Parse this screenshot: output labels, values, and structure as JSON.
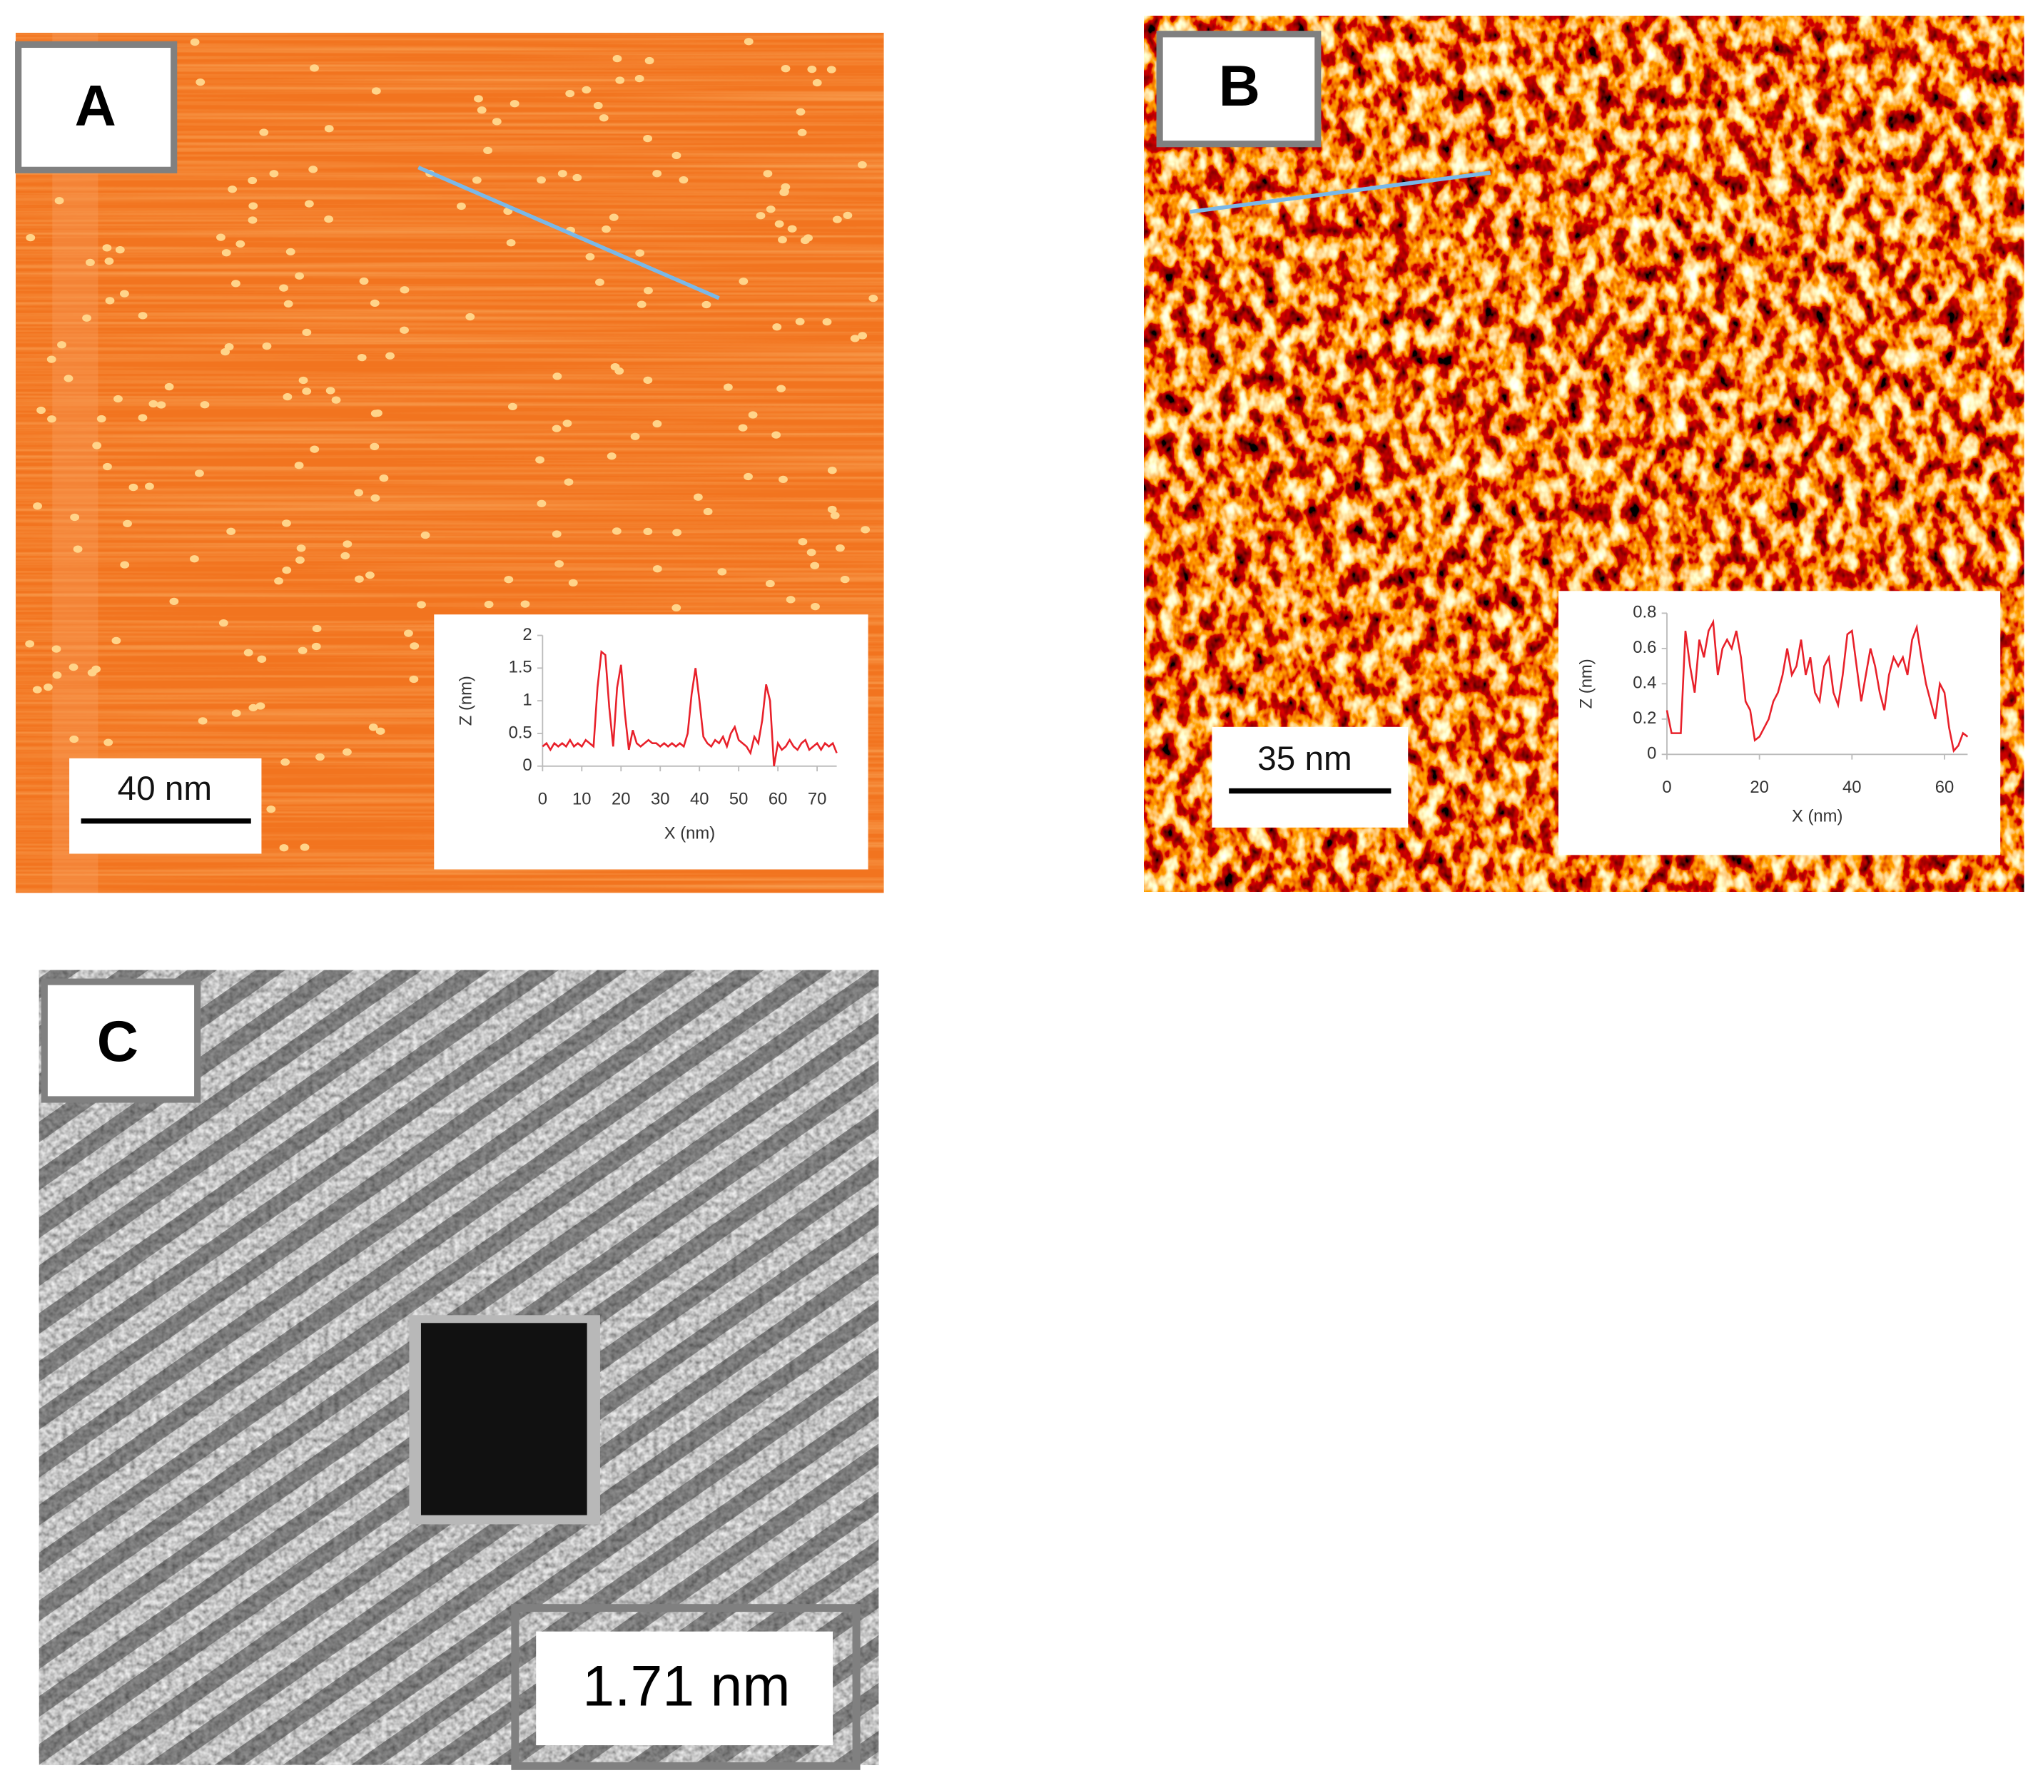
{
  "panels": [
    {
      "label": "A",
      "scale_bar": "40 nm"
    },
    {
      "label": "B",
      "scale_bar": "35 nm"
    },
    {
      "label": "C",
      "scale_bar": "1.71 nm"
    }
  ],
  "chart_data": [
    {
      "type": "line",
      "x_label": "X (nm)",
      "y_label": "Z (nm)",
      "x": [
        0,
        1,
        2,
        3,
        4,
        5,
        6,
        7,
        8,
        9,
        10,
        11,
        12,
        13,
        14,
        15,
        16,
        17,
        18,
        19,
        20,
        21,
        22,
        23,
        24,
        25,
        26,
        27,
        28,
        29,
        30,
        31,
        32,
        33,
        34,
        35,
        36,
        37,
        38,
        39,
        40,
        41,
        42,
        43,
        44,
        45,
        46,
        47,
        48,
        49,
        50,
        51,
        52,
        53,
        54,
        55,
        56,
        57,
        58,
        59,
        60,
        61,
        62,
        63,
        64,
        65,
        66,
        67,
        68,
        69,
        70,
        71,
        72,
        73,
        74,
        75
      ],
      "series": [
        {
          "color": "#e8202a",
          "values": [
            0.3,
            0.35,
            0.25,
            0.35,
            0.3,
            0.35,
            0.3,
            0.4,
            0.3,
            0.35,
            0.3,
            0.4,
            0.35,
            0.3,
            1.2,
            1.75,
            1.7,
            0.9,
            0.3,
            1.2,
            1.55,
            0.8,
            0.25,
            0.55,
            0.35,
            0.3,
            0.35,
            0.4,
            0.35,
            0.35,
            0.3,
            0.35,
            0.3,
            0.35,
            0.3,
            0.35,
            0.3,
            0.5,
            1.1,
            1.5,
            1.0,
            0.45,
            0.35,
            0.3,
            0.4,
            0.35,
            0.45,
            0.3,
            0.5,
            0.6,
            0.4,
            0.35,
            0.3,
            0.2,
            0.45,
            0.35,
            0.7,
            1.25,
            1.0,
            0.0,
            0.35,
            0.25,
            0.3,
            0.4,
            0.3,
            0.25,
            0.35,
            0.4,
            0.25,
            0.3,
            0.35,
            0.25,
            0.35,
            0.3,
            0.35,
            0.2
          ]
        }
      ],
      "xlim": [
        0,
        75
      ],
      "ylim": [
        0,
        2
      ],
      "xticks": [
        0,
        10,
        20,
        30,
        40,
        50,
        60,
        70
      ],
      "yticks": [
        0,
        0.5,
        1,
        1.5,
        2
      ]
    },
    {
      "type": "line",
      "x_label": "X (nm)",
      "y_label": "Z (nm)",
      "x": [
        0,
        1,
        2,
        3,
        4,
        5,
        6,
        7,
        8,
        9,
        10,
        11,
        12,
        13,
        14,
        15,
        16,
        17,
        18,
        19,
        20,
        21,
        22,
        23,
        24,
        25,
        26,
        27,
        28,
        29,
        30,
        31,
        32,
        33,
        34,
        35,
        36,
        37,
        38,
        39,
        40,
        41,
        42,
        43,
        44,
        45,
        46,
        47,
        48,
        49,
        50,
        51,
        52,
        53,
        54,
        55,
        56,
        57,
        58,
        59,
        60,
        61,
        62,
        63,
        64,
        65
      ],
      "series": [
        {
          "color": "#e8202a",
          "values": [
            0.25,
            0.12,
            0.12,
            0.12,
            0.7,
            0.5,
            0.35,
            0.65,
            0.55,
            0.7,
            0.75,
            0.45,
            0.6,
            0.65,
            0.6,
            0.7,
            0.55,
            0.3,
            0.25,
            0.08,
            0.1,
            0.15,
            0.2,
            0.3,
            0.35,
            0.45,
            0.6,
            0.45,
            0.5,
            0.65,
            0.45,
            0.55,
            0.35,
            0.3,
            0.5,
            0.55,
            0.35,
            0.28,
            0.45,
            0.68,
            0.7,
            0.5,
            0.3,
            0.45,
            0.6,
            0.5,
            0.35,
            0.25,
            0.45,
            0.55,
            0.5,
            0.55,
            0.45,
            0.65,
            0.72,
            0.55,
            0.4,
            0.3,
            0.2,
            0.4,
            0.35,
            0.15,
            0.02,
            0.05,
            0.12,
            0.1
          ]
        }
      ],
      "xlim": [
        0,
        65
      ],
      "ylim": [
        0,
        0.8
      ],
      "xticks": [
        0,
        20,
        40,
        60
      ],
      "yticks": [
        0,
        0.2,
        0.4,
        0.6,
        0.8
      ]
    }
  ]
}
